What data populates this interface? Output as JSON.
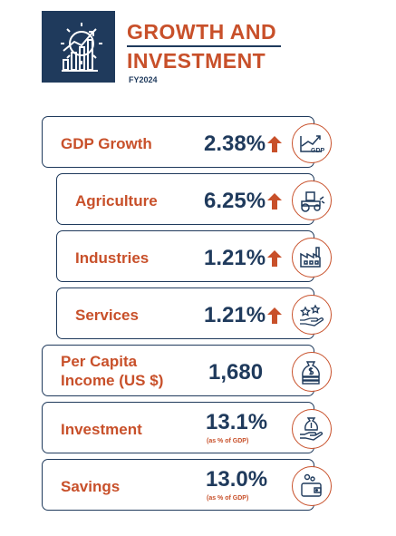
{
  "header": {
    "title_line1": "GROWTH AND",
    "title_line2": "INVESTMENT",
    "fiscal_year": "FY2024",
    "logo": "gear-growth-bars-icon"
  },
  "metrics": [
    {
      "label": "GDP Growth",
      "value": "2.38%",
      "trend": "up",
      "icon": "gdp-chart-icon",
      "icon_text": "GDP"
    },
    {
      "label": "Agriculture",
      "value": "6.25%",
      "trend": "up",
      "icon": "tractor-icon"
    },
    {
      "label": "Industries",
      "value": "1.21%",
      "trend": "up",
      "icon": "factory-icon"
    },
    {
      "label": "Services",
      "value": "1.21%",
      "trend": "up",
      "icon": "hand-stars-icon"
    },
    {
      "label_line1": "Per Capita",
      "label_line2": "Income (US $)",
      "value": "1,680",
      "icon": "money-bag-dollar-icon"
    },
    {
      "label": "Investment",
      "value": "13.1%",
      "note": "(as % of GDP)",
      "icon": "money-bag-hand-icon"
    },
    {
      "label": "Savings",
      "value": "13.0%",
      "note": "(as % of GDP)",
      "icon": "wallet-coins-icon"
    }
  ],
  "colors": {
    "accent": "#c8502a",
    "navy": "#1f3a5c"
  }
}
